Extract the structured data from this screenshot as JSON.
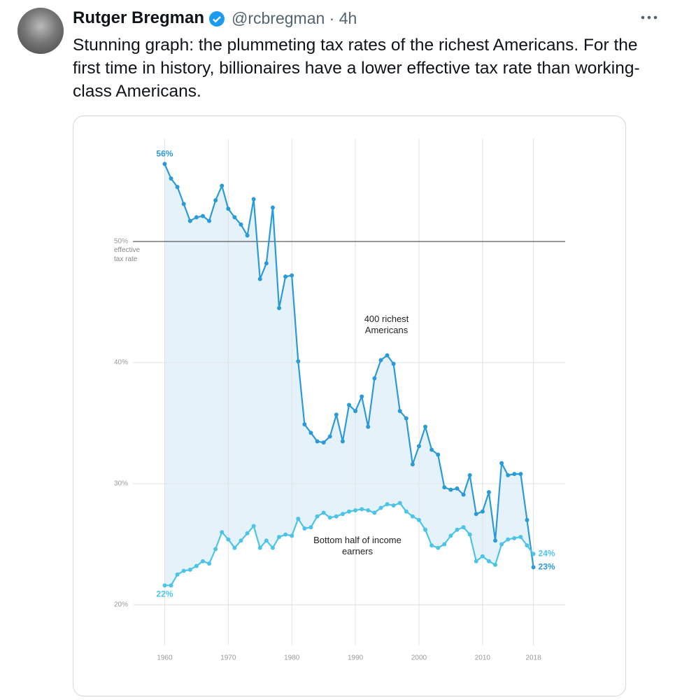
{
  "tweet": {
    "author": "Rutger Bregman",
    "meta": "@rcbregman · 4h",
    "text": "Stunning graph: the plummeting tax rates of the richest Americans. For the first time in history, billionaires have a lower effective tax rate than working-class Americans."
  },
  "chart_data": {
    "type": "line",
    "ylabel": "effective tax rate",
    "x": [
      1960,
      1961,
      1962,
      1963,
      1964,
      1965,
      1966,
      1967,
      1968,
      1969,
      1970,
      1971,
      1972,
      1973,
      1974,
      1975,
      1976,
      1977,
      1978,
      1979,
      1980,
      1981,
      1982,
      1983,
      1984,
      1985,
      1986,
      1987,
      1988,
      1989,
      1990,
      1991,
      1992,
      1993,
      1994,
      1995,
      1996,
      1997,
      1998,
      1999,
      2000,
      2001,
      2002,
      2003,
      2004,
      2005,
      2006,
      2007,
      2008,
      2009,
      2010,
      2011,
      2012,
      2013,
      2014,
      2015,
      2016,
      2017,
      2018
    ],
    "series": [
      {
        "name": "400 richest Americans",
        "color": "#2b9bd8",
        "values": [
          56.4,
          55.2,
          54.5,
          53.1,
          51.7,
          52.0,
          52.1,
          51.7,
          53.4,
          54.6,
          52.7,
          52.0,
          51.4,
          50.5,
          53.5,
          46.9,
          48.2,
          52.8,
          44.5,
          47.1,
          47.2,
          40.1,
          34.9,
          34.2,
          33.5,
          33.4,
          33.9,
          35.7,
          33.5,
          36.5,
          36.0,
          37.2,
          34.7,
          38.7,
          40.2,
          40.6,
          39.9,
          36.0,
          35.4,
          31.6,
          33.1,
          34.7,
          32.8,
          32.4,
          29.7,
          29.5,
          29.6,
          29.1,
          30.7,
          27.5,
          27.7,
          29.3,
          25.3,
          31.7,
          30.7,
          30.8,
          30.8,
          27.0,
          23.1
        ],
        "value_labels": [
          "56%",
          null,
          null,
          null,
          null,
          null,
          null,
          null,
          null,
          null,
          null,
          null,
          null,
          null,
          null,
          null,
          null,
          null,
          null,
          null,
          null,
          null,
          null,
          null,
          null,
          null,
          null,
          null,
          null,
          null,
          null,
          null,
          null,
          null,
          null,
          null,
          null,
          null,
          null,
          null,
          null,
          null,
          null,
          null,
          null,
          null,
          null,
          null,
          null,
          null,
          null,
          null,
          null,
          null,
          null,
          null,
          null,
          null,
          "23%"
        ]
      },
      {
        "name": "Bottom half of income earners",
        "color": "#4cc4e8",
        "values": [
          21.6,
          21.6,
          22.5,
          22.8,
          22.9,
          23.2,
          23.6,
          23.4,
          24.6,
          26.0,
          25.4,
          24.7,
          25.3,
          25.9,
          26.5,
          24.7,
          25.3,
          24.7,
          25.6,
          25.8,
          25.7,
          27.1,
          26.3,
          26.4,
          27.3,
          27.6,
          27.2,
          27.3,
          27.5,
          27.7,
          27.8,
          27.9,
          27.8,
          27.6,
          28.0,
          28.3,
          28.2,
          28.4,
          27.7,
          27.3,
          27.0,
          26.2,
          24.9,
          24.7,
          25.0,
          25.7,
          26.2,
          26.4,
          25.8,
          23.6,
          24.0,
          23.6,
          23.3,
          25.0,
          25.4,
          25.5,
          25.6,
          24.9,
          24.2
        ],
        "value_labels": [
          "22%",
          null,
          null,
          null,
          null,
          null,
          null,
          null,
          null,
          null,
          null,
          null,
          null,
          null,
          null,
          null,
          null,
          null,
          null,
          null,
          null,
          null,
          null,
          null,
          null,
          null,
          null,
          null,
          null,
          null,
          null,
          null,
          null,
          null,
          null,
          null,
          null,
          null,
          null,
          null,
          null,
          null,
          null,
          null,
          null,
          null,
          null,
          null,
          null,
          null,
          null,
          null,
          null,
          null,
          null,
          null,
          null,
          null,
          "24%"
        ]
      }
    ],
    "fill_between": "#e5f2f9",
    "xlim": [
      1955,
      2023
    ],
    "xticks": [
      1960,
      1970,
      1980,
      1990,
      2000,
      2010,
      2018
    ],
    "ylim": [
      17,
      58
    ],
    "yticks": [
      {
        "value": 20,
        "label": "20%"
      },
      {
        "value": 30,
        "label": "30%"
      },
      {
        "value": 40,
        "label": "40%"
      },
      {
        "value": 50,
        "label": "50%"
      }
    ],
    "reference_line": 50,
    "grid": true
  }
}
